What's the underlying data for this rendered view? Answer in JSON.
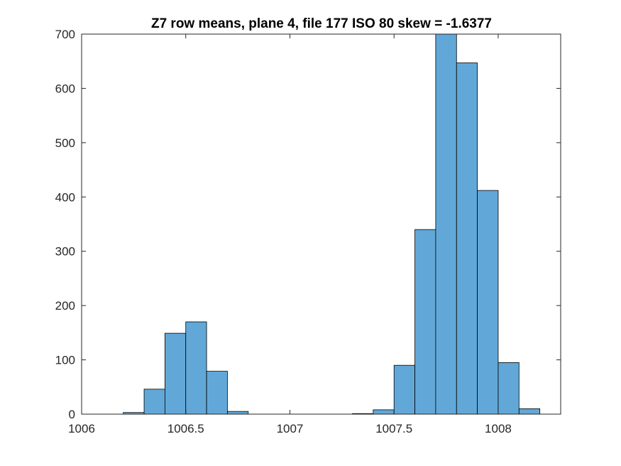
{
  "chart_data": {
    "type": "bar",
    "title": "Z7 row means, plane 4, file 177 ISO 80 skew = -1.6377",
    "xlabel": "",
    "ylabel": "",
    "xlim": [
      1006,
      1008.3
    ],
    "ylim": [
      0,
      700
    ],
    "bin_width": 0.1,
    "x_ticks": [
      1006,
      1006.5,
      1007,
      1007.5,
      1008
    ],
    "x_tick_labels": [
      "1006",
      "1006.5",
      "1007",
      "1007.5",
      "1008"
    ],
    "y_ticks": [
      0,
      100,
      200,
      300,
      400,
      500,
      600,
      700
    ],
    "y_tick_labels": [
      "0",
      "100",
      "200",
      "300",
      "400",
      "500",
      "600",
      "700"
    ],
    "bins": [
      {
        "start": 1006.2,
        "count": 3
      },
      {
        "start": 1006.3,
        "count": 46
      },
      {
        "start": 1006.4,
        "count": 149
      },
      {
        "start": 1006.5,
        "count": 170
      },
      {
        "start": 1006.6,
        "count": 79
      },
      {
        "start": 1006.7,
        "count": 5
      },
      {
        "start": 1007.3,
        "count": 1
      },
      {
        "start": 1007.4,
        "count": 8
      },
      {
        "start": 1007.5,
        "count": 90
      },
      {
        "start": 1007.6,
        "count": 340
      },
      {
        "start": 1007.7,
        "count": 700
      },
      {
        "start": 1007.8,
        "count": 647
      },
      {
        "start": 1007.9,
        "count": 412
      },
      {
        "start": 1008.0,
        "count": 95
      },
      {
        "start": 1008.1,
        "count": 10
      }
    ],
    "grid": false,
    "colors": {
      "bar_fill": "#61a8d8",
      "bar_edge": "#000000",
      "axis": "#262626"
    }
  }
}
